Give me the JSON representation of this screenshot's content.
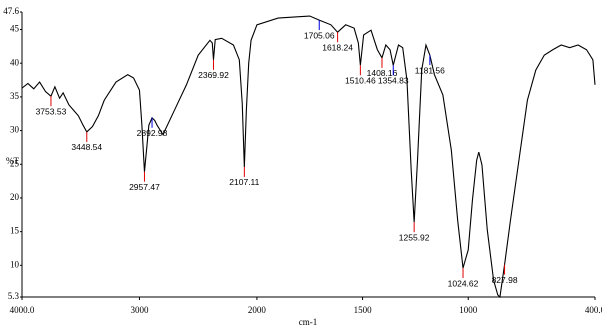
{
  "chart_data": {
    "type": "line",
    "xlabel": "cm-1",
    "ylabel": "%T",
    "xlim": [
      4000,
      400
    ],
    "xticks": [
      {
        "value": 4000,
        "label": "4000.0"
      },
      3000,
      2000,
      1500,
      1000,
      {
        "value": 400,
        "label": "400.0"
      }
    ],
    "ylim": [
      5.3,
      47.6
    ],
    "yticks": [
      5.3,
      10,
      15,
      20,
      25,
      30,
      35,
      40,
      45,
      47.6
    ],
    "series": [
      {
        "color": "#000000",
        "x": [
          4000,
          3950,
          3900,
          3850,
          3800,
          3753.53,
          3720,
          3680,
          3650,
          3600,
          3560,
          3520,
          3480,
          3448.54,
          3400,
          3350,
          3300,
          3200,
          3100,
          3050,
          3000,
          2980,
          2957.47,
          2935,
          2920,
          2892.98,
          2870,
          2850,
          2800,
          2700,
          2600,
          2500,
          2400,
          2380,
          2369.92,
          2355,
          2300,
          2200,
          2150,
          2125,
          2107.11,
          2090,
          2070,
          2050,
          2000,
          1900,
          1800,
          1750,
          1705.06,
          1650,
          1618.24,
          1580,
          1540,
          1520,
          1510.46,
          1495,
          1460,
          1430,
          1408.16,
          1390,
          1370,
          1354.83,
          1330,
          1310,
          1290,
          1270,
          1255.92,
          1240,
          1220,
          1200,
          1181.56,
          1160,
          1120,
          1080,
          1050,
          1024.62,
          1000,
          980,
          960,
          950,
          935,
          910,
          880,
          860,
          850,
          827.98,
          800,
          760,
          720,
          680,
          640,
          600,
          560,
          520,
          480,
          440,
          410,
          400
        ],
        "values": [
          36.3,
          37.0,
          36.2,
          37.2,
          35.8,
          35.1,
          36.5,
          34.8,
          35.6,
          33.8,
          33.0,
          32.2,
          30.8,
          29.8,
          30.6,
          32.2,
          34.5,
          37.2,
          38.3,
          37.8,
          36.0,
          31,
          23.9,
          28,
          30.8,
          31.9,
          31.5,
          30.8,
          29.4,
          33.1,
          36.8,
          41.2,
          43.4,
          43.0,
          40.5,
          43.5,
          43.7,
          42.7,
          40.5,
          34,
          24.6,
          33,
          40,
          43.4,
          45.7,
          46.7,
          46.9,
          47.0,
          46.4,
          45.7,
          44.6,
          45.7,
          45.2,
          43.0,
          39.7,
          44.2,
          44.9,
          42.0,
          40.8,
          42.7,
          42.0,
          39.7,
          42.7,
          42.3,
          37.5,
          24.2,
          16.4,
          25.6,
          39.0,
          42.7,
          41.2,
          38.3,
          35.3,
          27.1,
          16.7,
          9.6,
          12.3,
          19.7,
          25.6,
          26.8,
          24.9,
          15.3,
          7.8,
          5.6,
          5.3,
          10.1,
          16.7,
          25.6,
          34.5,
          39.0,
          41.2,
          42.0,
          42.7,
          42.3,
          42.7,
          42.0,
          40.5,
          36.8
        ]
      }
    ],
    "annotations": {
      "x": [
        3753.53,
        3448.54,
        2957.47,
        2892.98,
        2369.92,
        2107.11,
        1705.06,
        1618.24,
        1510.46,
        1408.16,
        1354.83,
        1255.92,
        1181.56,
        1024.62,
        827.98
      ],
      "y": [
        35.1,
        29.8,
        23.9,
        31.9,
        40.5,
        24.6,
        46.4,
        44.6,
        39.7,
        40.8,
        39.7,
        16.4,
        41.2,
        9.6,
        10.1
      ],
      "colors": [
        "#e00000",
        "#e00000",
        "#e00000",
        "#0000e0",
        "#e00000",
        "#e00000",
        "#0000e0",
        "#e00000",
        "#e00000",
        "#e00000",
        "#0000e0",
        "#e00000",
        "#0000e0",
        "#e00000",
        "#e00000"
      ]
    }
  }
}
